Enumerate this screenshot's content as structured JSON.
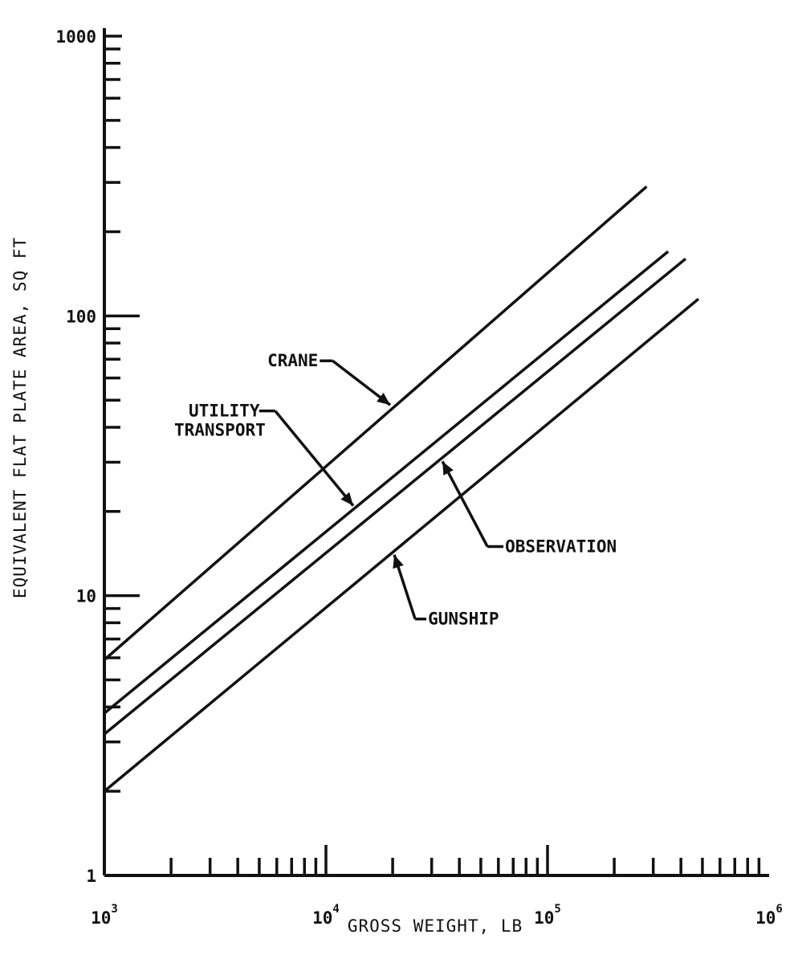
{
  "chart_data": {
    "type": "line",
    "xlabel": "GROSS WEIGHT, LB",
    "ylabel": "EQUIVALENT FLAT PLATE AREA, SQ FT",
    "x_scale": "log",
    "y_scale": "log",
    "xlim": [
      1000,
      1000000
    ],
    "ylim": [
      1,
      1000
    ],
    "x_tick_labels": [
      {
        "value": 1000,
        "base": "10",
        "exp": "3"
      },
      {
        "value": 10000,
        "base": "10",
        "exp": "4"
      },
      {
        "value": 100000,
        "base": "10",
        "exp": "5"
      },
      {
        "value": 1000000,
        "base": "10",
        "exp": "6"
      }
    ],
    "y_tick_labels": [
      {
        "value": 1,
        "label": "1"
      },
      {
        "value": 10,
        "label": "10"
      },
      {
        "value": 100,
        "label": "100"
      },
      {
        "value": 1000,
        "label": "1000"
      }
    ],
    "grid": false,
    "legend": "none",
    "series": [
      {
        "key": "crane",
        "name": "CRANE",
        "x": [
          1000,
          280000
        ],
        "y": [
          5.9,
          290
        ],
        "callout_x": 20000
      },
      {
        "key": "utility",
        "name": "UTILITY TRANSPORT",
        "name_lines": [
          "UTILITY",
          "TRANSPORT"
        ],
        "x": [
          1000,
          350000
        ],
        "y": [
          3.8,
          170
        ],
        "callout_x": 13500
      },
      {
        "key": "observation",
        "name": "OBSERVATION",
        "x": [
          1000,
          420000
        ],
        "y": [
          3.2,
          160
        ],
        "callout_x": 33000
      },
      {
        "key": "gunship",
        "name": "GUNSHIP",
        "x": [
          1000,
          480000
        ],
        "y": [
          2.0,
          115
        ],
        "callout_x": 20000
      }
    ]
  }
}
